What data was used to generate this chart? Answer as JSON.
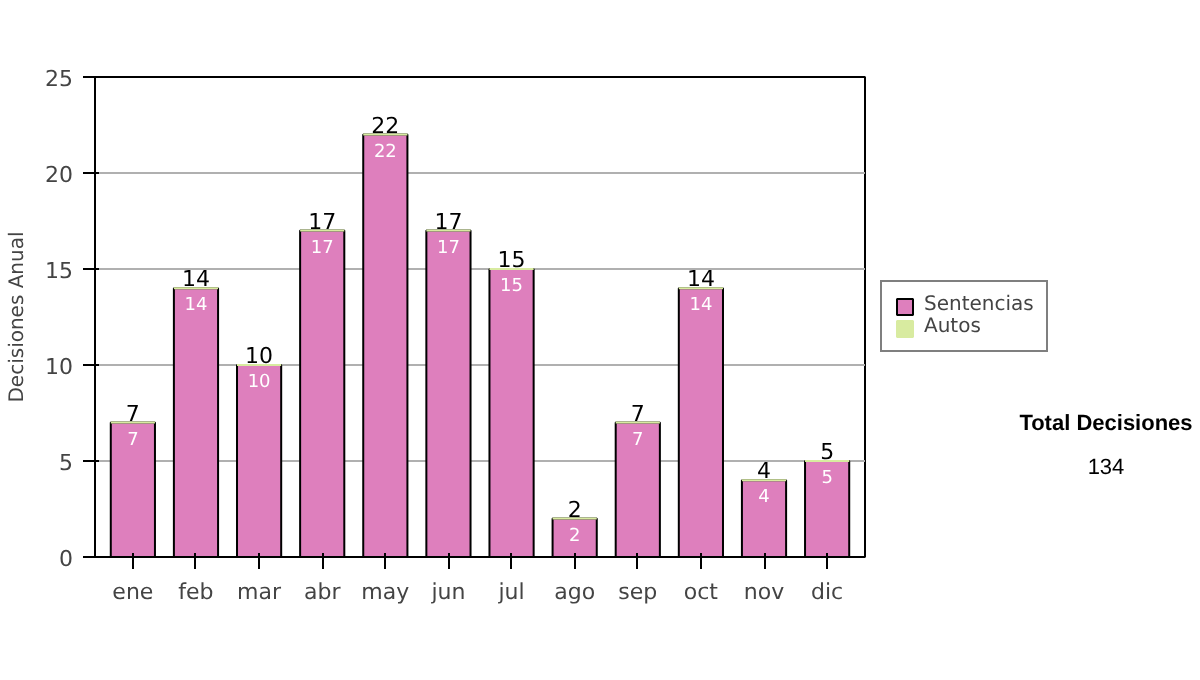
{
  "chart_data": {
    "type": "bar",
    "stacked": true,
    "categories": [
      "ene",
      "feb",
      "mar",
      "abr",
      "may",
      "jun",
      "jul",
      "ago",
      "sep",
      "oct",
      "nov",
      "dic"
    ],
    "ylabel": "Decisiones Anual",
    "series": [
      {
        "name": "Sentencias",
        "color": "#de7fbd",
        "values": [
          7,
          14,
          10,
          17,
          22,
          17,
          15,
          2,
          7,
          14,
          4,
          5
        ],
        "value_labels": [
          "7",
          "14",
          "10",
          "17",
          "22",
          "17",
          "15",
          "2",
          "7",
          "14",
          "4",
          "5"
        ]
      },
      {
        "name": "Autos",
        "color": "#d8eba0",
        "values": [
          0,
          0,
          0,
          0,
          0,
          0,
          0,
          0,
          0,
          0,
          0,
          0
        ]
      }
    ],
    "totals": [
      "7",
      "14",
      "10",
      "17",
      "22",
      "17",
      "15",
      "2",
      "7",
      "14",
      "4",
      "5"
    ],
    "ylim": [
      0,
      25
    ],
    "yticks": [
      0,
      5,
      10,
      15,
      20,
      25
    ],
    "grid": "y",
    "legend": "right",
    "annotations": [
      "Total Decisiones",
      "134"
    ]
  }
}
